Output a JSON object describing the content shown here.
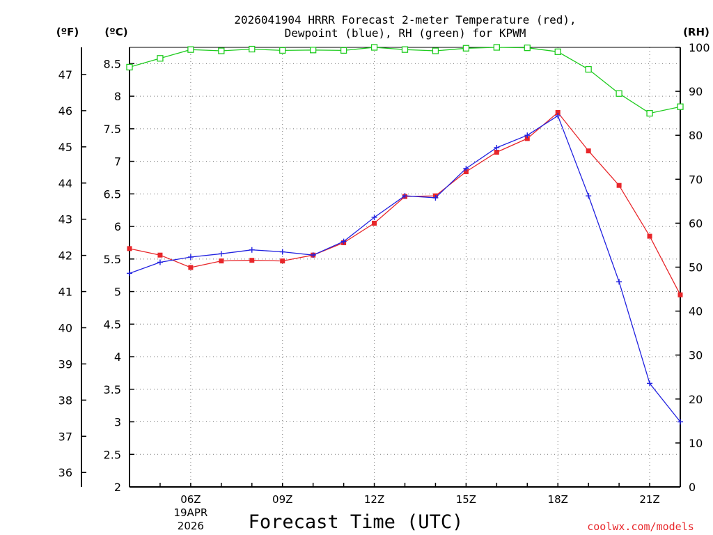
{
  "chart_data": {
    "type": "line",
    "title_line1": "2026041904 HRRR Forecast 2-meter Temperature (red),",
    "title_line2": "Dewpoint (blue), RH (green) for KPWM",
    "xlabel": "Forecast Time (UTC)",
    "credit": "coolwx.com/models",
    "left_unit_f": "(ºF)",
    "left_unit_c": "(ºC)",
    "right_unit": "(RH)",
    "x_hours": [
      4,
      5,
      6,
      7,
      8,
      9,
      10,
      11,
      12,
      13,
      14,
      15,
      16,
      17,
      18,
      19,
      20,
      21,
      22
    ],
    "x_range": [
      4,
      22
    ],
    "x_ticks": [
      {
        "hour": 6,
        "label": "06Z",
        "sub1": "19APR",
        "sub2": "2026"
      },
      {
        "hour": 9,
        "label": "09Z"
      },
      {
        "hour": 12,
        "label": "12Z"
      },
      {
        "hour": 15,
        "label": "15Z"
      },
      {
        "hour": 18,
        "label": "18Z"
      },
      {
        "hour": 21,
        "label": "21Z"
      }
    ],
    "celsius_range": [
      2,
      8.75
    ],
    "celsius_ticks": [
      "2",
      "2.5",
      "3",
      "3.5",
      "4",
      "4.5",
      "5",
      "5.5",
      "6",
      "6.5",
      "7",
      "7.5",
      "8",
      "8.5"
    ],
    "fahrenheit_ticks": [
      "36",
      "37",
      "38",
      "39",
      "40",
      "41",
      "42",
      "43",
      "44",
      "45",
      "46",
      "47"
    ],
    "rh_range": [
      0,
      100
    ],
    "rh_ticks": [
      "0",
      "10",
      "20",
      "30",
      "40",
      "50",
      "60",
      "70",
      "80",
      "90",
      "100"
    ],
    "series": [
      {
        "name": "Temperature",
        "unit": "C",
        "color": "#e8262a",
        "marker": "filled-square",
        "values": [
          5.66,
          5.56,
          5.37,
          5.47,
          5.48,
          5.47,
          5.56,
          5.75,
          6.05,
          6.46,
          6.47,
          6.84,
          7.14,
          7.35,
          7.75,
          7.16,
          6.63,
          5.85,
          4.95
        ]
      },
      {
        "name": "Dewpoint",
        "unit": "C",
        "color": "#2222e0",
        "marker": "plus",
        "values": [
          5.28,
          5.45,
          5.53,
          5.58,
          5.64,
          5.61,
          5.56,
          5.77,
          6.14,
          6.47,
          6.44,
          6.89,
          7.21,
          7.4,
          7.7,
          6.47,
          5.15,
          3.59,
          3.0
        ]
      },
      {
        "name": "RH",
        "unit": "%",
        "color": "#1fcc1f",
        "marker": "open-square",
        "values": [
          95.5,
          97.5,
          99.5,
          99.2,
          99.6,
          99.3,
          99.4,
          99.3,
          100,
          99.5,
          99.2,
          99.8,
          100,
          99.9,
          99.0,
          95.0,
          89.5,
          85.0,
          86.5
        ]
      }
    ]
  }
}
